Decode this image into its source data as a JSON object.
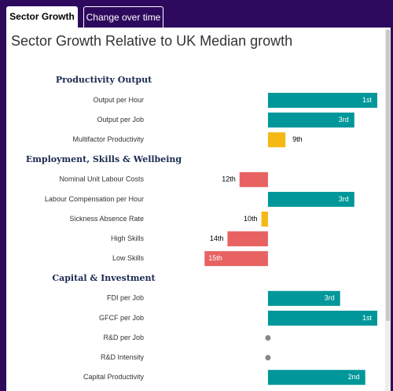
{
  "tabs": [
    "Sector Growth",
    "Change over time"
  ],
  "chart_data": {
    "type": "bar",
    "title": "Sector Growth Relative to UK Median growth",
    "xlim": [
      -120,
      100
    ],
    "sections": [
      {
        "title": "Productivity Output",
        "categories": [
          "Output per Hour",
          "Output per Job",
          "Multifactor Productivity"
        ],
        "values": [
          100,
          79,
          16
        ],
        "labels": [
          "1st",
          "3rd",
          "9th"
        ],
        "colors": [
          "#00979a",
          "#00979a",
          "#f5b915"
        ]
      },
      {
        "title": "Employment, Skills & Wellbeing",
        "categories": [
          "Nominal Unit Labour Costs",
          "Labour Compensation per Hour",
          "Sickness Absence Rate",
          "High Skills",
          "Low Skills"
        ],
        "values": [
          -26,
          79,
          -6,
          -37,
          -58
        ],
        "labels": [
          "12th",
          "3rd",
          "10th",
          "14th",
          "15th"
        ],
        "colors": [
          "#e86262",
          "#00979a",
          "#f5b915",
          "#e86262",
          "#e86262"
        ]
      },
      {
        "title": "Capital & Investment",
        "categories": [
          "FDI per Job",
          "GFCF per Job",
          "R&D per Job",
          "R&D Intensity",
          "Capital Productivity"
        ],
        "values": [
          66,
          100,
          null,
          null,
          89
        ],
        "labels": [
          "3rd",
          "1st",
          null,
          null,
          "2nd"
        ],
        "colors": [
          "#00979a",
          "#00979a",
          null,
          null,
          "#00979a"
        ]
      }
    ]
  }
}
